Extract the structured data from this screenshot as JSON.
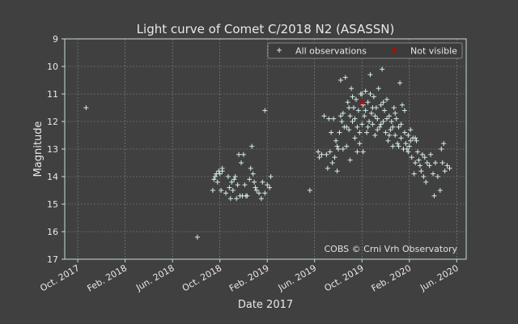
{
  "chart_data": {
    "type": "scatter",
    "title": "Light curve of Comet C/2018 N2 (ASASSN)",
    "xlabel": "Date 2017",
    "ylabel": "Magnitude",
    "credit": "COBS © Crni Vrh Observatory",
    "x_unit": "month",
    "x_origin": "Oct. 2017",
    "xlim": [
      -1.1,
      32.8
    ],
    "ylim": [
      17,
      9
    ],
    "y_inverted": true,
    "grid": true,
    "legend_position": "top-right",
    "x_ticks": [
      {
        "x": 0,
        "label": "Oct. 2017"
      },
      {
        "x": 4,
        "label": "Feb. 2018"
      },
      {
        "x": 8,
        "label": "Jun. 2018"
      },
      {
        "x": 12,
        "label": "Oct. 2018"
      },
      {
        "x": 16,
        "label": "Feb. 2019"
      },
      {
        "x": 20,
        "label": "Jun. 2019"
      },
      {
        "x": 24,
        "label": "Oct. 2019"
      },
      {
        "x": 28,
        "label": "Feb. 2020"
      },
      {
        "x": 32,
        "label": "Jun. 2020"
      }
    ],
    "y_ticks": [
      9,
      10,
      11,
      12,
      13,
      14,
      15,
      16,
      17
    ],
    "colors": {
      "background": "#404040",
      "axes": "#c9dcd8",
      "grid": "#8a8a8a",
      "all_observations": "#d6ece8",
      "not_visible": "#cc0000",
      "text": "#e8e8e8"
    },
    "series": [
      {
        "name": "All observations",
        "marker": "plus",
        "points": [
          [
            0.7,
            11.5
          ],
          [
            10.1,
            16.2
          ],
          [
            15.8,
            11.6
          ],
          [
            11.4,
            14.5
          ],
          [
            11.5,
            14.1
          ],
          [
            11.6,
            14.0
          ],
          [
            11.7,
            13.9
          ],
          [
            11.8,
            14.2
          ],
          [
            11.9,
            13.8
          ],
          [
            12.0,
            13.9
          ],
          [
            12.1,
            14.5
          ],
          [
            12.2,
            13.7
          ],
          [
            12.2,
            13.8
          ],
          [
            12.5,
            14.6
          ],
          [
            12.7,
            14.0
          ],
          [
            12.8,
            14.4
          ],
          [
            12.9,
            14.8
          ],
          [
            13.0,
            14.2
          ],
          [
            13.1,
            14.5
          ],
          [
            13.2,
            14.1
          ],
          [
            13.3,
            14.0
          ],
          [
            13.4,
            14.8
          ],
          [
            13.5,
            14.3
          ],
          [
            13.6,
            13.2
          ],
          [
            13.8,
            13.5
          ],
          [
            13.9,
            14.7
          ],
          [
            14.0,
            13.2
          ],
          [
            14.1,
            14.3
          ],
          [
            14.3,
            14.7
          ],
          [
            14.5,
            14.1
          ],
          [
            14.6,
            13.7
          ],
          [
            14.7,
            12.9
          ],
          [
            14.8,
            13.9
          ],
          [
            14.9,
            14.2
          ],
          [
            15.1,
            14.5
          ],
          [
            15.3,
            14.6
          ],
          [
            15.5,
            14.8
          ],
          [
            15.6,
            14.2
          ],
          [
            15.8,
            14.6
          ],
          [
            16.0,
            14.3
          ],
          [
            16.2,
            14.4
          ],
          [
            16.3,
            14.0
          ],
          [
            13.7,
            14.7
          ],
          [
            14.2,
            14.7
          ],
          [
            15.0,
            14.4
          ],
          [
            19.6,
            14.5
          ],
          [
            20.3,
            13.1
          ],
          [
            20.4,
            13.3
          ],
          [
            20.6,
            13.2
          ],
          [
            20.8,
            11.8
          ],
          [
            21.0,
            13.2
          ],
          [
            21.1,
            13.7
          ],
          [
            21.2,
            11.9
          ],
          [
            21.3,
            13.1
          ],
          [
            21.5,
            13.5
          ],
          [
            21.6,
            11.9
          ],
          [
            21.7,
            13.3
          ],
          [
            21.8,
            12.7
          ],
          [
            21.9,
            13.8
          ],
          [
            22.0,
            13.0
          ],
          [
            22.1,
            12.4
          ],
          [
            22.2,
            10.5
          ],
          [
            22.3,
            12.0
          ],
          [
            22.4,
            11.7
          ],
          [
            22.5,
            12.2
          ],
          [
            22.6,
            10.4
          ],
          [
            22.7,
            12.9
          ],
          [
            22.8,
            11.3
          ],
          [
            22.9,
            12.3
          ],
          [
            23.0,
            11.8
          ],
          [
            23.0,
            13.4
          ],
          [
            23.1,
            10.8
          ],
          [
            23.2,
            12.0
          ],
          [
            23.3,
            11.5
          ],
          [
            23.4,
            12.6
          ],
          [
            23.5,
            11.2
          ],
          [
            23.6,
            12.2
          ],
          [
            23.7,
            11.6
          ],
          [
            23.8,
            12.8
          ],
          [
            23.9,
            11.0
          ],
          [
            24.0,
            12.1
          ],
          [
            24.1,
            11.4
          ],
          [
            24.1,
            13.1
          ],
          [
            24.2,
            11.8
          ],
          [
            24.3,
            10.9
          ],
          [
            24.4,
            12.4
          ],
          [
            24.5,
            11.3
          ],
          [
            24.6,
            12.0
          ],
          [
            24.7,
            10.3
          ],
          [
            24.8,
            11.7
          ],
          [
            24.9,
            12.1
          ],
          [
            25.0,
            11.1
          ],
          [
            25.1,
            12.5
          ],
          [
            25.2,
            11.5
          ],
          [
            25.3,
            11.9
          ],
          [
            25.4,
            10.8
          ],
          [
            25.5,
            12.2
          ],
          [
            25.6,
            11.4
          ],
          [
            25.7,
            10.1
          ],
          [
            25.8,
            12.0
          ],
          [
            25.9,
            11.6
          ],
          [
            26.0,
            12.4
          ],
          [
            26.1,
            11.2
          ],
          [
            26.2,
            12.7
          ],
          [
            26.3,
            11.8
          ],
          [
            26.4,
            12.3
          ],
          [
            26.5,
            12.0
          ],
          [
            26.6,
            12.9
          ],
          [
            26.7,
            11.5
          ],
          [
            26.8,
            12.5
          ],
          [
            26.9,
            11.9
          ],
          [
            27.0,
            12.8
          ],
          [
            27.1,
            12.2
          ],
          [
            27.2,
            10.6
          ],
          [
            27.3,
            12.6
          ],
          [
            27.4,
            11.4
          ],
          [
            27.5,
            13.0
          ],
          [
            27.6,
            12.4
          ],
          [
            27.7,
            12.8
          ],
          [
            27.8,
            13.0
          ],
          [
            27.9,
            12.5
          ],
          [
            28.0,
            12.9
          ],
          [
            28.1,
            12.7
          ],
          [
            28.2,
            13.3
          ],
          [
            28.3,
            12.6
          ],
          [
            28.4,
            13.9
          ],
          [
            28.5,
            13.5
          ],
          [
            28.6,
            12.7
          ],
          [
            28.7,
            13.1
          ],
          [
            28.8,
            13.4
          ],
          [
            28.9,
            13.6
          ],
          [
            29.0,
            13.8
          ],
          [
            29.1,
            13.2
          ],
          [
            29.2,
            14.0
          ],
          [
            29.3,
            13.3
          ],
          [
            29.4,
            14.2
          ],
          [
            29.5,
            13.5
          ],
          [
            29.7,
            13.6
          ],
          [
            29.8,
            13.2
          ],
          [
            30.0,
            13.9
          ],
          [
            30.1,
            14.7
          ],
          [
            30.2,
            13.5
          ],
          [
            30.4,
            14.0
          ],
          [
            30.6,
            14.5
          ],
          [
            30.7,
            13.0
          ],
          [
            30.8,
            13.5
          ],
          [
            30.9,
            12.8
          ],
          [
            31.0,
            13.8
          ],
          [
            31.2,
            13.6
          ],
          [
            31.4,
            13.7
          ],
          [
            21.4,
            12.4
          ],
          [
            21.9,
            12.9
          ],
          [
            22.2,
            11.8
          ],
          [
            22.4,
            13.0
          ],
          [
            22.7,
            12.2
          ],
          [
            22.9,
            11.5
          ],
          [
            23.2,
            11.1
          ],
          [
            23.4,
            11.9
          ],
          [
            23.6,
            13.1
          ],
          [
            23.8,
            12.4
          ],
          [
            24.0,
            11.0
          ],
          [
            24.3,
            11.6
          ],
          [
            24.5,
            12.2
          ],
          [
            24.7,
            11.0
          ],
          [
            24.9,
            11.5
          ],
          [
            25.1,
            11.8
          ],
          [
            25.3,
            12.3
          ],
          [
            25.6,
            12.1
          ],
          [
            25.8,
            11.3
          ],
          [
            26.1,
            11.9
          ],
          [
            26.3,
            12.5
          ],
          [
            26.6,
            12.2
          ],
          [
            26.8,
            11.7
          ],
          [
            27.1,
            12.9
          ],
          [
            27.3,
            12.1
          ],
          [
            27.6,
            11.6
          ],
          [
            27.9,
            13.1
          ],
          [
            28.1,
            12.3
          ],
          [
            28.5,
            12.6
          ]
        ]
      },
      {
        "name": "Not visible",
        "marker": "star",
        "points": [
          [
            24.0,
            11.3
          ]
        ]
      }
    ]
  }
}
